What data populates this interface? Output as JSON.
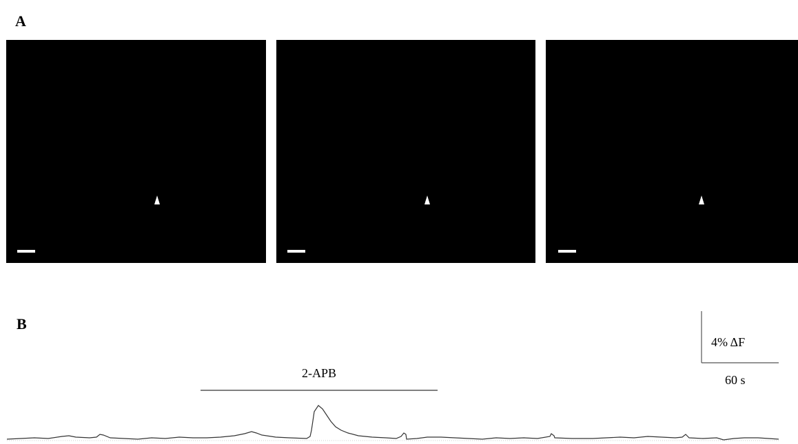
{
  "panel_a": {
    "label": "A"
  },
  "panel_b": {
    "label": "B",
    "drug": "2-APB",
    "scale_y": "4% ΔF",
    "scale_x": "60 s"
  }
}
